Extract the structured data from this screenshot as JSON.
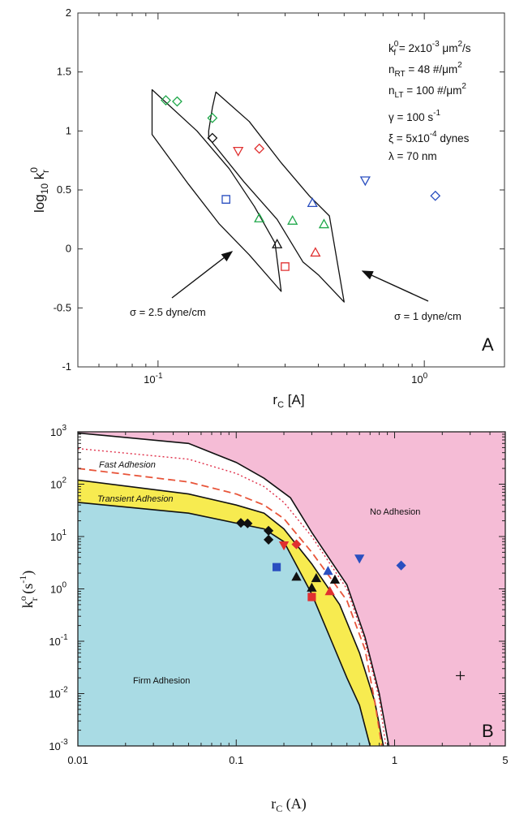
{
  "chart_data": [
    {
      "type": "scatter",
      "panel_label": "A",
      "xlabel": "r_C [A]",
      "ylabel": "log10 k_r^0",
      "xscale": "log",
      "xlim": [
        0.05,
        2
      ],
      "ylim": [
        -1,
        2
      ],
      "yticks": [
        "-1",
        "-0.5",
        "0",
        "0.5",
        "1",
        "1.5",
        "2"
      ],
      "xticks": [
        "10-1",
        "100"
      ],
      "parameters": [
        "k_f^0 = 2x10^-3 μm^2/s",
        "n_RT = 48 #/μm^2",
        "n_LT = 100 #/μm^2",
        "γ = 100 s^-1",
        "ξ = 5x10^-4 dynes",
        "λ = 70 nm"
      ],
      "annotations": [
        "σ = 2.5 dyne/cm",
        "σ = 1 dyne/cm"
      ],
      "series": [
        {
          "marker": "diamond-open",
          "color": "#1fa84a",
          "points": [
            [
              0.107,
              1.26
            ],
            [
              0.118,
              1.25
            ],
            [
              0.16,
              1.11
            ]
          ]
        },
        {
          "marker": "diamond-open",
          "color": "#111111",
          "points": [
            [
              0.16,
              0.94
            ]
          ]
        },
        {
          "marker": "diamond-open",
          "color": "#e03030",
          "points": [
            [
              0.24,
              0.85
            ]
          ]
        },
        {
          "marker": "diamond-open",
          "color": "#2a4fc0",
          "points": [
            [
              1.1,
              0.45
            ]
          ]
        },
        {
          "marker": "triangle-down-open",
          "color": "#e03030",
          "points": [
            [
              0.2,
              0.83
            ]
          ]
        },
        {
          "marker": "triangle-down-open",
          "color": "#2a4fc0",
          "points": [
            [
              0.6,
              0.58
            ]
          ]
        },
        {
          "marker": "square-open",
          "color": "#2a4fc0",
          "points": [
            [
              0.18,
              0.42
            ]
          ]
        },
        {
          "marker": "square-open",
          "color": "#e03030",
          "points": [
            [
              0.3,
              -0.15
            ]
          ]
        },
        {
          "marker": "triangle-up-open",
          "color": "#2a4fc0",
          "points": [
            [
              0.38,
              0.39
            ]
          ]
        },
        {
          "marker": "triangle-up-open",
          "color": "#1fa84a",
          "points": [
            [
              0.24,
              0.26
            ],
            [
              0.32,
              0.24
            ],
            [
              0.42,
              0.21
            ]
          ]
        },
        {
          "marker": "triangle-up-open",
          "color": "#111111",
          "points": [
            [
              0.28,
              0.04
            ]
          ]
        },
        {
          "marker": "triangle-up-open",
          "color": "#e03030",
          "points": [
            [
              0.39,
              -0.03
            ]
          ]
        }
      ],
      "outlines": [
        {
          "name": "σ = 2.5 dyne/cm",
          "points": [
            [
              0.095,
              1.35
            ],
            [
              0.14,
              1.0
            ],
            [
              0.185,
              0.68
            ],
            [
              0.23,
              0.36
            ],
            [
              0.275,
              0.05
            ],
            [
              0.29,
              -0.36
            ],
            [
              0.29,
              -0.36
            ],
            [
              0.22,
              -0.05
            ],
            [
              0.17,
              0.21
            ],
            [
              0.13,
              0.55
            ],
            [
              0.095,
              0.97
            ]
          ]
        },
        {
          "name": "σ = 1 dyne/cm",
          "points": [
            [
              0.165,
              1.33
            ],
            [
              0.22,
              1.08
            ],
            [
              0.29,
              0.73
            ],
            [
              0.37,
              0.45
            ],
            [
              0.44,
              0.28
            ],
            [
              0.5,
              -0.45
            ],
            [
              0.5,
              -0.45
            ],
            [
              0.4,
              -0.22
            ],
            [
              0.35,
              -0.11
            ],
            [
              0.28,
              0.25
            ],
            [
              0.21,
              0.57
            ],
            [
              0.155,
              0.94
            ],
            [
              0.155,
              1.0
            ],
            [
              0.16,
              1.2
            ]
          ]
        }
      ]
    },
    {
      "type": "area",
      "panel_label": "B",
      "xlabel": "r_C (A)",
      "ylabel": "k_r^o (s^-1)",
      "xscale": "log",
      "yscale": "log",
      "xlim": [
        0.01,
        5
      ],
      "ylim": [
        0.001,
        1000
      ],
      "xticks": [
        "0.01",
        "0.1",
        "1",
        "5"
      ],
      "yticks": [
        "10-3",
        "10-2",
        "10-1",
        "100",
        "101",
        "102",
        "103"
      ],
      "regions": [
        {
          "name": "Firm Adhesion",
          "color": "#a9dbe4"
        },
        {
          "name": "Transient Adhesion",
          "color": "#f7eb50"
        },
        {
          "name": "Fast Adhesion",
          "color": "#ffffff"
        },
        {
          "name": "No Adhesion",
          "color": "#f5bcd6"
        }
      ],
      "boundaries": {
        "firm_upper": [
          [
            0.01,
            45
          ],
          [
            0.05,
            28
          ],
          [
            0.1,
            18
          ],
          [
            0.15,
            14
          ],
          [
            0.2,
            8
          ],
          [
            0.3,
            0.8
          ],
          [
            0.4,
            0.1
          ],
          [
            0.5,
            0.02
          ],
          [
            0.6,
            0.006
          ],
          [
            0.7,
            0.001
          ]
        ],
        "transient_upper": [
          [
            0.01,
            120
          ],
          [
            0.05,
            65
          ],
          [
            0.1,
            40
          ],
          [
            0.15,
            28
          ],
          [
            0.2,
            14
          ],
          [
            0.3,
            3
          ],
          [
            0.45,
            0.5
          ],
          [
            0.6,
            0.06
          ],
          [
            0.75,
            0.007
          ],
          [
            0.85,
            0.001
          ]
        ],
        "fast_upper": [
          [
            0.01,
            950
          ],
          [
            0.05,
            600
          ],
          [
            0.1,
            260
          ],
          [
            0.15,
            130
          ],
          [
            0.22,
            55
          ],
          [
            0.3,
            12
          ],
          [
            0.5,
            1.2
          ],
          [
            0.65,
            0.12
          ],
          [
            0.8,
            0.01
          ],
          [
            0.92,
            0.001
          ]
        ],
        "dashed_red": [
          [
            0.01,
            200
          ],
          [
            0.05,
            110
          ],
          [
            0.1,
            65
          ],
          [
            0.15,
            40
          ],
          [
            0.2,
            22
          ],
          [
            0.3,
            5
          ],
          [
            0.5,
            0.6
          ],
          [
            0.65,
            0.07
          ],
          [
            0.75,
            0.007
          ],
          [
            0.83,
            0.001
          ]
        ],
        "dotted_red": [
          [
            0.01,
            480
          ],
          [
            0.05,
            300
          ],
          [
            0.1,
            160
          ],
          [
            0.15,
            90
          ],
          [
            0.2,
            45
          ],
          [
            0.3,
            10
          ],
          [
            0.5,
            1.0
          ],
          [
            0.65,
            0.1
          ],
          [
            0.8,
            0.008
          ],
          [
            0.88,
            0.001
          ]
        ]
      },
      "series": [
        {
          "marker": "diamond-filled",
          "color": "#111111",
          "points": [
            [
              0.107,
              18.2
            ],
            [
              0.118,
              17.8
            ],
            [
              0.16,
              12.9
            ],
            [
              0.16,
              8.7
            ]
          ]
        },
        {
          "marker": "diamond-filled",
          "color": "#e03030",
          "points": [
            [
              0.24,
              7.1
            ]
          ]
        },
        {
          "marker": "diamond-filled",
          "color": "#2a4fc0",
          "points": [
            [
              1.1,
              2.8
            ]
          ]
        },
        {
          "marker": "triangle-down-filled",
          "color": "#e03030",
          "points": [
            [
              0.2,
              6.8
            ]
          ]
        },
        {
          "marker": "triangle-down-filled",
          "color": "#2a4fc0",
          "points": [
            [
              0.6,
              3.8
            ]
          ]
        },
        {
          "marker": "square-filled",
          "color": "#2a4fc0",
          "points": [
            [
              0.18,
              2.6
            ]
          ]
        },
        {
          "marker": "square-filled",
          "color": "#e03030",
          "points": [
            [
              0.3,
              0.7
            ]
          ]
        },
        {
          "marker": "triangle-up-filled",
          "color": "#2a4fc0",
          "points": [
            [
              0.38,
              2.2
            ]
          ]
        },
        {
          "marker": "triangle-up-filled",
          "color": "#111111",
          "points": [
            [
              0.24,
              1.7
            ],
            [
              0.3,
              1.05
            ],
            [
              0.32,
              1.6
            ],
            [
              0.42,
              1.5
            ]
          ]
        },
        {
          "marker": "triangle-up-filled",
          "color": "#e03030",
          "points": [
            [
              0.39,
              0.9
            ]
          ]
        },
        {
          "marker": "plus",
          "color": "#111111",
          "points": [
            [
              2.6,
              0.022
            ]
          ]
        }
      ]
    }
  ]
}
